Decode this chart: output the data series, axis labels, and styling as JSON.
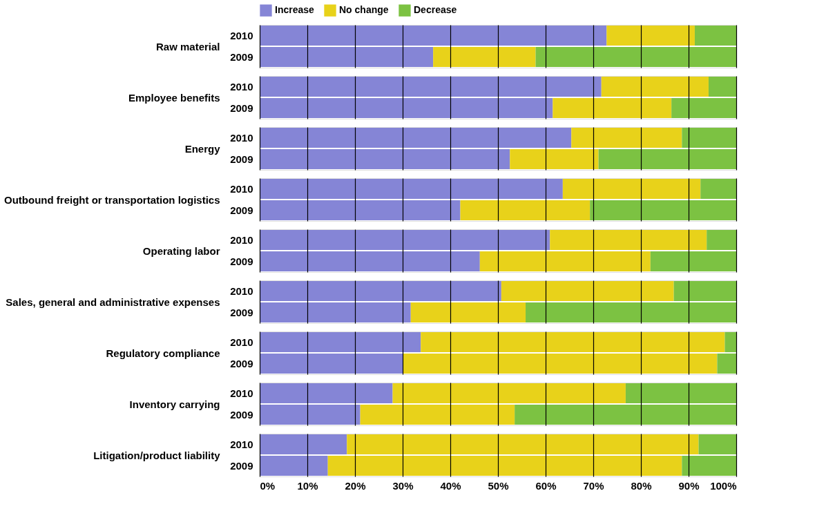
{
  "chart_data": [
    {
      "type": "bar",
      "orientation": "horizontal",
      "stacked": true,
      "ylabel": "Raw material",
      "categories": [
        "2010",
        "2009"
      ],
      "legend": "top",
      "grid": "x",
      "tick_labels": "y",
      "xlim": [
        0,
        100
      ],
      "xticks": [
        0,
        10,
        20,
        30,
        40,
        50,
        60,
        70,
        80,
        90,
        100
      ],
      "series": [
        {
          "name": "Increase",
          "color": "#8585d6",
          "values": [
            72.8,
            36.4
          ]
        },
        {
          "name": "No change",
          "color": "#e8d21a",
          "values": [
            18.5,
            21.5
          ]
        },
        {
          "name": "Decrease",
          "color": "#7cc242",
          "values": [
            8.7,
            42.1
          ]
        }
      ]
    },
    {
      "type": "bar",
      "orientation": "horizontal",
      "stacked": true,
      "ylabel": "Employee benefits",
      "categories": [
        "2010",
        "2009"
      ],
      "grid": "x",
      "tick_labels": "y",
      "xlim": [
        0,
        100
      ],
      "xticks": [
        0,
        10,
        20,
        30,
        40,
        50,
        60,
        70,
        80,
        90,
        100
      ],
      "series": [
        {
          "color": "#8585d6",
          "values": [
            71.7,
            61.5
          ]
        },
        {
          "color": "#e8d21a",
          "values": [
            22.5,
            24.9
          ]
        },
        {
          "color": "#7cc242",
          "values": [
            5.8,
            13.6
          ]
        }
      ]
    },
    {
      "type": "bar",
      "orientation": "horizontal",
      "stacked": true,
      "ylabel": "Energy",
      "categories": [
        "2010",
        "2009"
      ],
      "grid": "x",
      "tick_labels": "y",
      "xlim": [
        0,
        100
      ],
      "xticks": [
        0,
        10,
        20,
        30,
        40,
        50,
        60,
        70,
        80,
        90,
        100
      ],
      "series": [
        {
          "color": "#8585d6",
          "values": [
            65.4,
            52.5
          ]
        },
        {
          "color": "#e8d21a",
          "values": [
            23.2,
            18.6
          ]
        },
        {
          "color": "#7cc242",
          "values": [
            11.4,
            28.9
          ]
        }
      ]
    },
    {
      "type": "bar",
      "orientation": "horizontal",
      "stacked": true,
      "ylabel": "Outbound freight or transportation logistics",
      "categories": [
        "2010",
        "2009"
      ],
      "grid": "x",
      "tick_labels": "y",
      "xlim": [
        0,
        100
      ],
      "xticks": [
        0,
        10,
        20,
        30,
        40,
        50,
        60,
        70,
        80,
        90,
        100
      ],
      "series": [
        {
          "color": "#8585d6",
          "values": [
            63.6,
            42.1
          ]
        },
        {
          "color": "#e8d21a",
          "values": [
            28.9,
            27.2
          ]
        },
        {
          "color": "#7cc242",
          "values": [
            7.5,
            30.7
          ]
        }
      ]
    },
    {
      "type": "bar",
      "orientation": "horizontal",
      "stacked": true,
      "ylabel": "Operating labor",
      "categories": [
        "2010",
        "2009"
      ],
      "grid": "x",
      "tick_labels": "y",
      "xlim": [
        0,
        100
      ],
      "xticks": [
        0,
        10,
        20,
        30,
        40,
        50,
        60,
        70,
        80,
        90,
        100
      ],
      "series": [
        {
          "color": "#8585d6",
          "values": [
            60.9,
            46.2
          ]
        },
        {
          "color": "#e8d21a",
          "values": [
            32.9,
            35.8
          ]
        },
        {
          "color": "#7cc242",
          "values": [
            6.2,
            18.0
          ]
        }
      ]
    },
    {
      "type": "bar",
      "orientation": "horizontal",
      "stacked": true,
      "ylabel": "Sales, general and administrative expenses",
      "categories": [
        "2010",
        "2009"
      ],
      "grid": "x",
      "tick_labels": "y",
      "xlim": [
        0,
        100
      ],
      "xticks": [
        0,
        10,
        20,
        30,
        40,
        50,
        60,
        70,
        80,
        90,
        100
      ],
      "series": [
        {
          "color": "#8585d6",
          "values": [
            50.7,
            31.7
          ]
        },
        {
          "color": "#e8d21a",
          "values": [
            36.2,
            24.1
          ]
        },
        {
          "color": "#7cc242",
          "values": [
            13.1,
            44.2
          ]
        }
      ]
    },
    {
      "type": "bar",
      "orientation": "horizontal",
      "stacked": true,
      "ylabel": "Regulatory compliance",
      "categories": [
        "2010",
        "2009"
      ],
      "grid": "x",
      "tick_labels": "y",
      "xlim": [
        0,
        100
      ],
      "xticks": [
        0,
        10,
        20,
        30,
        40,
        50,
        60,
        70,
        80,
        90,
        100
      ],
      "series": [
        {
          "color": "#8585d6",
          "values": [
            33.8,
            30.1
          ]
        },
        {
          "color": "#e8d21a",
          "values": [
            63.8,
            65.9
          ]
        },
        {
          "color": "#7cc242",
          "values": [
            2.4,
            4.0
          ]
        }
      ]
    },
    {
      "type": "bar",
      "orientation": "horizontal",
      "stacked": true,
      "ylabel": "Inventory carrying",
      "categories": [
        "2010",
        "2009"
      ],
      "grid": "x",
      "tick_labels": "y",
      "xlim": [
        0,
        100
      ],
      "xticks": [
        0,
        10,
        20,
        30,
        40,
        50,
        60,
        70,
        80,
        90,
        100
      ],
      "series": [
        {
          "color": "#8585d6",
          "values": [
            27.9,
            21.1
          ]
        },
        {
          "color": "#e8d21a",
          "values": [
            48.9,
            32.4
          ]
        },
        {
          "color": "#7cc242",
          "values": [
            23.2,
            46.5
          ]
        }
      ]
    },
    {
      "type": "bar",
      "orientation": "horizontal",
      "stacked": true,
      "ylabel": "Litigation/product liability",
      "categories": [
        "2010",
        "2009"
      ],
      "grid": "x",
      "xlim": [
        0,
        100
      ],
      "xticks": [
        {
          "value": 0,
          "label": "0%"
        },
        {
          "value": 10,
          "label": "10%"
        },
        {
          "value": 20,
          "label": "20%"
        },
        {
          "value": 30,
          "label": "30%"
        },
        {
          "value": 40,
          "label": "40%"
        },
        {
          "value": 50,
          "label": "50%"
        },
        {
          "value": 60,
          "label": "60%"
        },
        {
          "value": 70,
          "label": "70%"
        },
        {
          "value": 80,
          "label": "80%"
        },
        {
          "value": 90,
          "label": "90%"
        },
        {
          "value": 100,
          "label": "100%"
        }
      ],
      "series": [
        {
          "color": "#8585d6",
          "values": [
            18.3,
            14.3
          ]
        },
        {
          "color": "#e8d21a",
          "values": [
            73.8,
            74.3
          ]
        },
        {
          "color": "#7cc242",
          "values": [
            7.9,
            11.4
          ]
        }
      ]
    }
  ]
}
